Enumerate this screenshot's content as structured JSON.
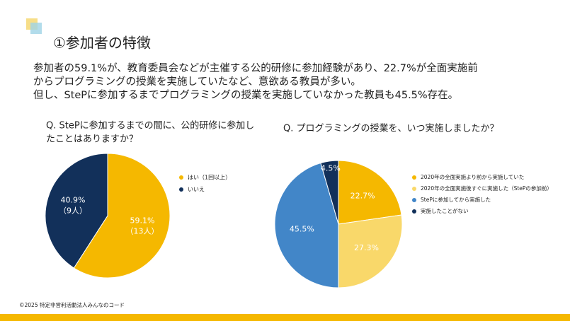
{
  "slide": {
    "title": "①参加者の特徴",
    "description": [
      "参加者の59.1%が、教育委員会などが主催する公的研修に参加経験があり、22.7%が全面実施前",
      "からプログラミングの授業を実施していたなど、意欲ある教員が多い。",
      "但し、StePに参加するまでプログラミングの授業を実施していなかった教員も45.5%存在。"
    ],
    "footer": "©2025 特定非営利活動法人みんなのコード"
  },
  "chart_data": [
    {
      "type": "pie",
      "title": [
        "Q. StePに参加するまでの間に、公的研修に参加し",
        "たことはありますか？"
      ],
      "categories": [
        "はい（1回以上）",
        "いいえ"
      ],
      "values": [
        59.1,
        40.9
      ],
      "value_labels": [
        "59.1%",
        "40.9%"
      ],
      "count_labels": [
        "（13人）",
        "（9人）"
      ],
      "colors": [
        "#f5b800",
        "#12305a"
      ],
      "legend": "right"
    },
    {
      "type": "pie",
      "title": [
        "Q. プログラミングの授業を、いつ実施しましたか？"
      ],
      "categories": [
        "2020年の全面実施より前から実施していた",
        "2020年の全面実施後すぐに実施した（StePの参加前）",
        "StePに参加してから実施した",
        "実施したことがない"
      ],
      "values": [
        22.7,
        27.3,
        45.5,
        4.5
      ],
      "value_labels": [
        "22.7%",
        "27.3%",
        "45.5%",
        "4.5%"
      ],
      "colors": [
        "#f5b800",
        "#f9d86a",
        "#4286c8",
        "#12305a"
      ],
      "legend": "right"
    }
  ]
}
